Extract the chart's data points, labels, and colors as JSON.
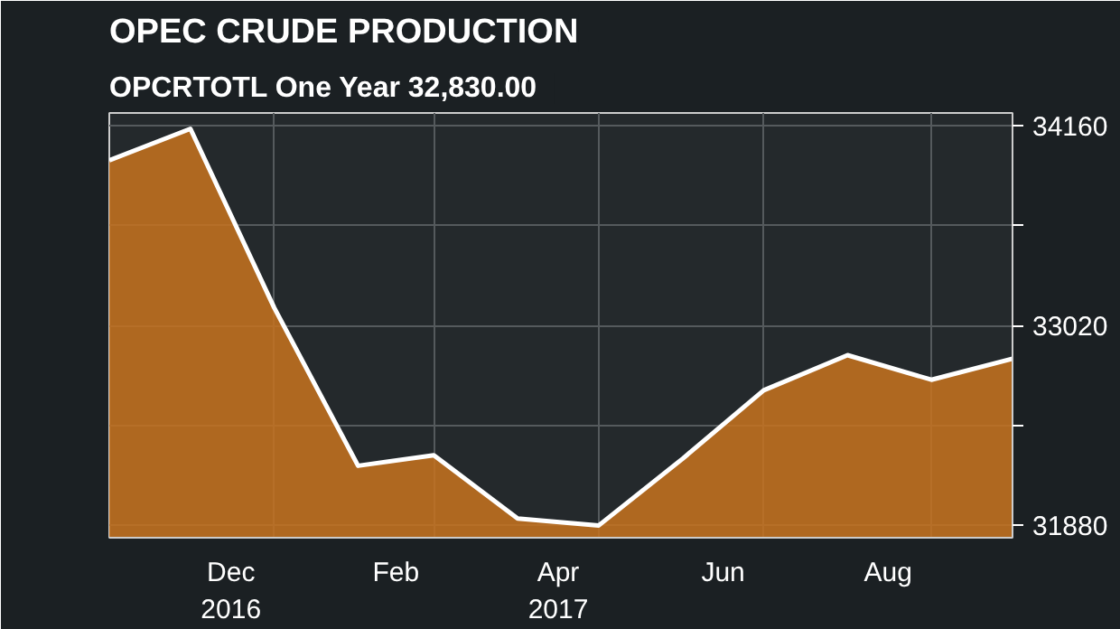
{
  "chart_data": {
    "type": "area",
    "title": "OPEC CRUDE PRODUCTION",
    "subtitle": "OPCRTOTL  One Year  32,830.00",
    "x": [
      "2016-11-01",
      "2016-12-01",
      "2017-01-01",
      "2017-02-01",
      "2017-03-01",
      "2017-04-01",
      "2017-05-01",
      "2017-06-01",
      "2017-07-01",
      "2017-08-01",
      "2017-09-01",
      "2017-10-01"
    ],
    "series": [
      {
        "color": "#c8731f",
        "values": [
          33960,
          34140,
          33120,
          32220,
          32280,
          31920,
          31880,
          32260,
          32650,
          32850,
          32710,
          32830
        ]
      }
    ],
    "xlim": [
      "2016-11-01",
      "2017-10-01"
    ],
    "xticks": [
      {
        "value": "2016-12-16",
        "label": "Dec\n2016"
      },
      {
        "value": "2017-02-15",
        "label": "Feb"
      },
      {
        "value": "2017-04-16",
        "label": "Apr\n2017"
      },
      {
        "value": "2017-06-16",
        "label": "Jun"
      },
      {
        "value": "2017-08-16",
        "label": "Aug"
      }
    ],
    "ylim": [
      31810,
      34230
    ],
    "yticks": [
      31880,
      {
        "value": 32450,
        "label": null
      },
      33020,
      {
        "value": 33590,
        "label": null
      },
      34160
    ],
    "grid": true
  }
}
